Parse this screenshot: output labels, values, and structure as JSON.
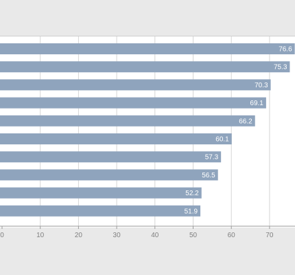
{
  "chart_data": {
    "type": "bar",
    "orientation": "horizontal",
    "values": [
      76.6,
      75.3,
      70.3,
      69.1,
      66.2,
      60.1,
      57.3,
      56.5,
      52.2,
      51.9
    ],
    "xlim": [
      0,
      78
    ],
    "x_ticks": [
      0,
      10,
      20,
      30,
      40,
      50,
      60,
      70
    ],
    "bar_color": "#8fa4bd",
    "grid": true
  }
}
